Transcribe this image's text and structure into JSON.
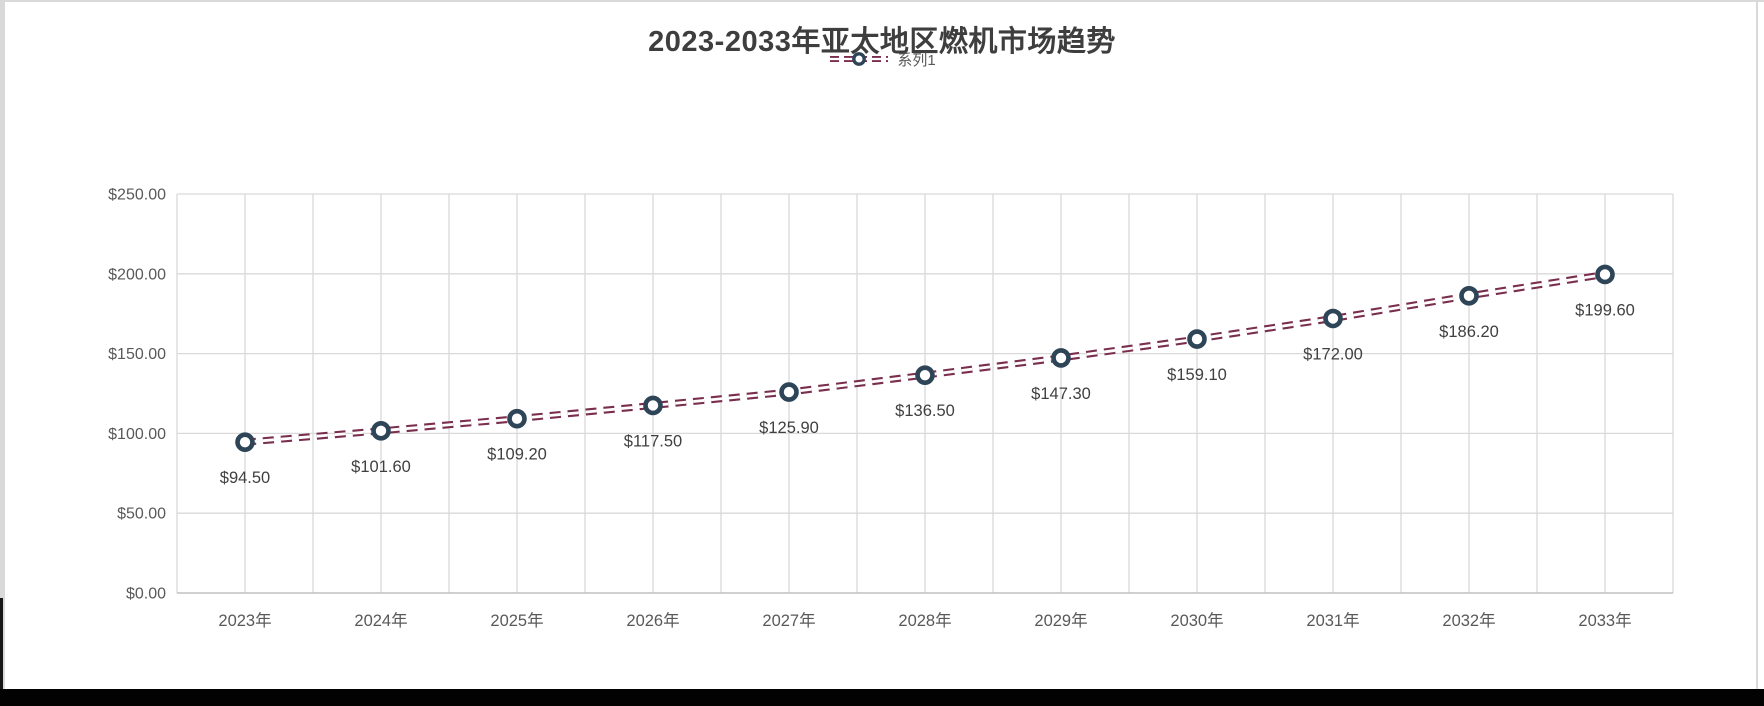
{
  "window": {
    "bottom_bar_color": "#020202",
    "background_color": "#ffffff",
    "border_color": "#d9d9d9"
  },
  "chart_data": {
    "type": "line",
    "title": "2023-2033年亚太地区燃机市场趋势",
    "legend": {
      "position": "top",
      "entries": [
        "系列1"
      ]
    },
    "categories": [
      "2023年",
      "2024年",
      "2025年",
      "2026年",
      "2027年",
      "2028年",
      "2029年",
      "2030年",
      "2031年",
      "2032年",
      "2033年"
    ],
    "series": [
      {
        "name": "系列1",
        "values": [
          94.5,
          101.6,
          109.2,
          117.5,
          125.9,
          136.5,
          147.3,
          159.1,
          172.0,
          186.2,
          199.6
        ],
        "data_labels": [
          "$94.50",
          "$101.60",
          "$109.20",
          "$117.50",
          "$125.90",
          "$136.50",
          "$147.30",
          "$159.10",
          "$172.00",
          "$186.20",
          "$199.60"
        ],
        "line_style": "double-dashed",
        "marker": "circle-ring"
      }
    ],
    "xlabel": "",
    "ylabel": "",
    "ylim": [
      0,
      250
    ],
    "ytick_interval": 50,
    "ytick_labels": [
      "$250.00",
      "$200.00",
      "$150.00",
      "$100.00",
      "$50.00",
      "$0.00"
    ],
    "grid": "major-horizontal and half-category vertical",
    "colors": {
      "line": "#7a2e4e",
      "line_gap": "#ffffff",
      "marker_ring": "#2e4557",
      "marker_fill": "#ffffff",
      "gridline": "#d9d9d9",
      "axis_line": "#c3c3c3",
      "axis_text": "#595959",
      "data_label_text": "#404040",
      "title_text": "#3e3e3e"
    }
  }
}
